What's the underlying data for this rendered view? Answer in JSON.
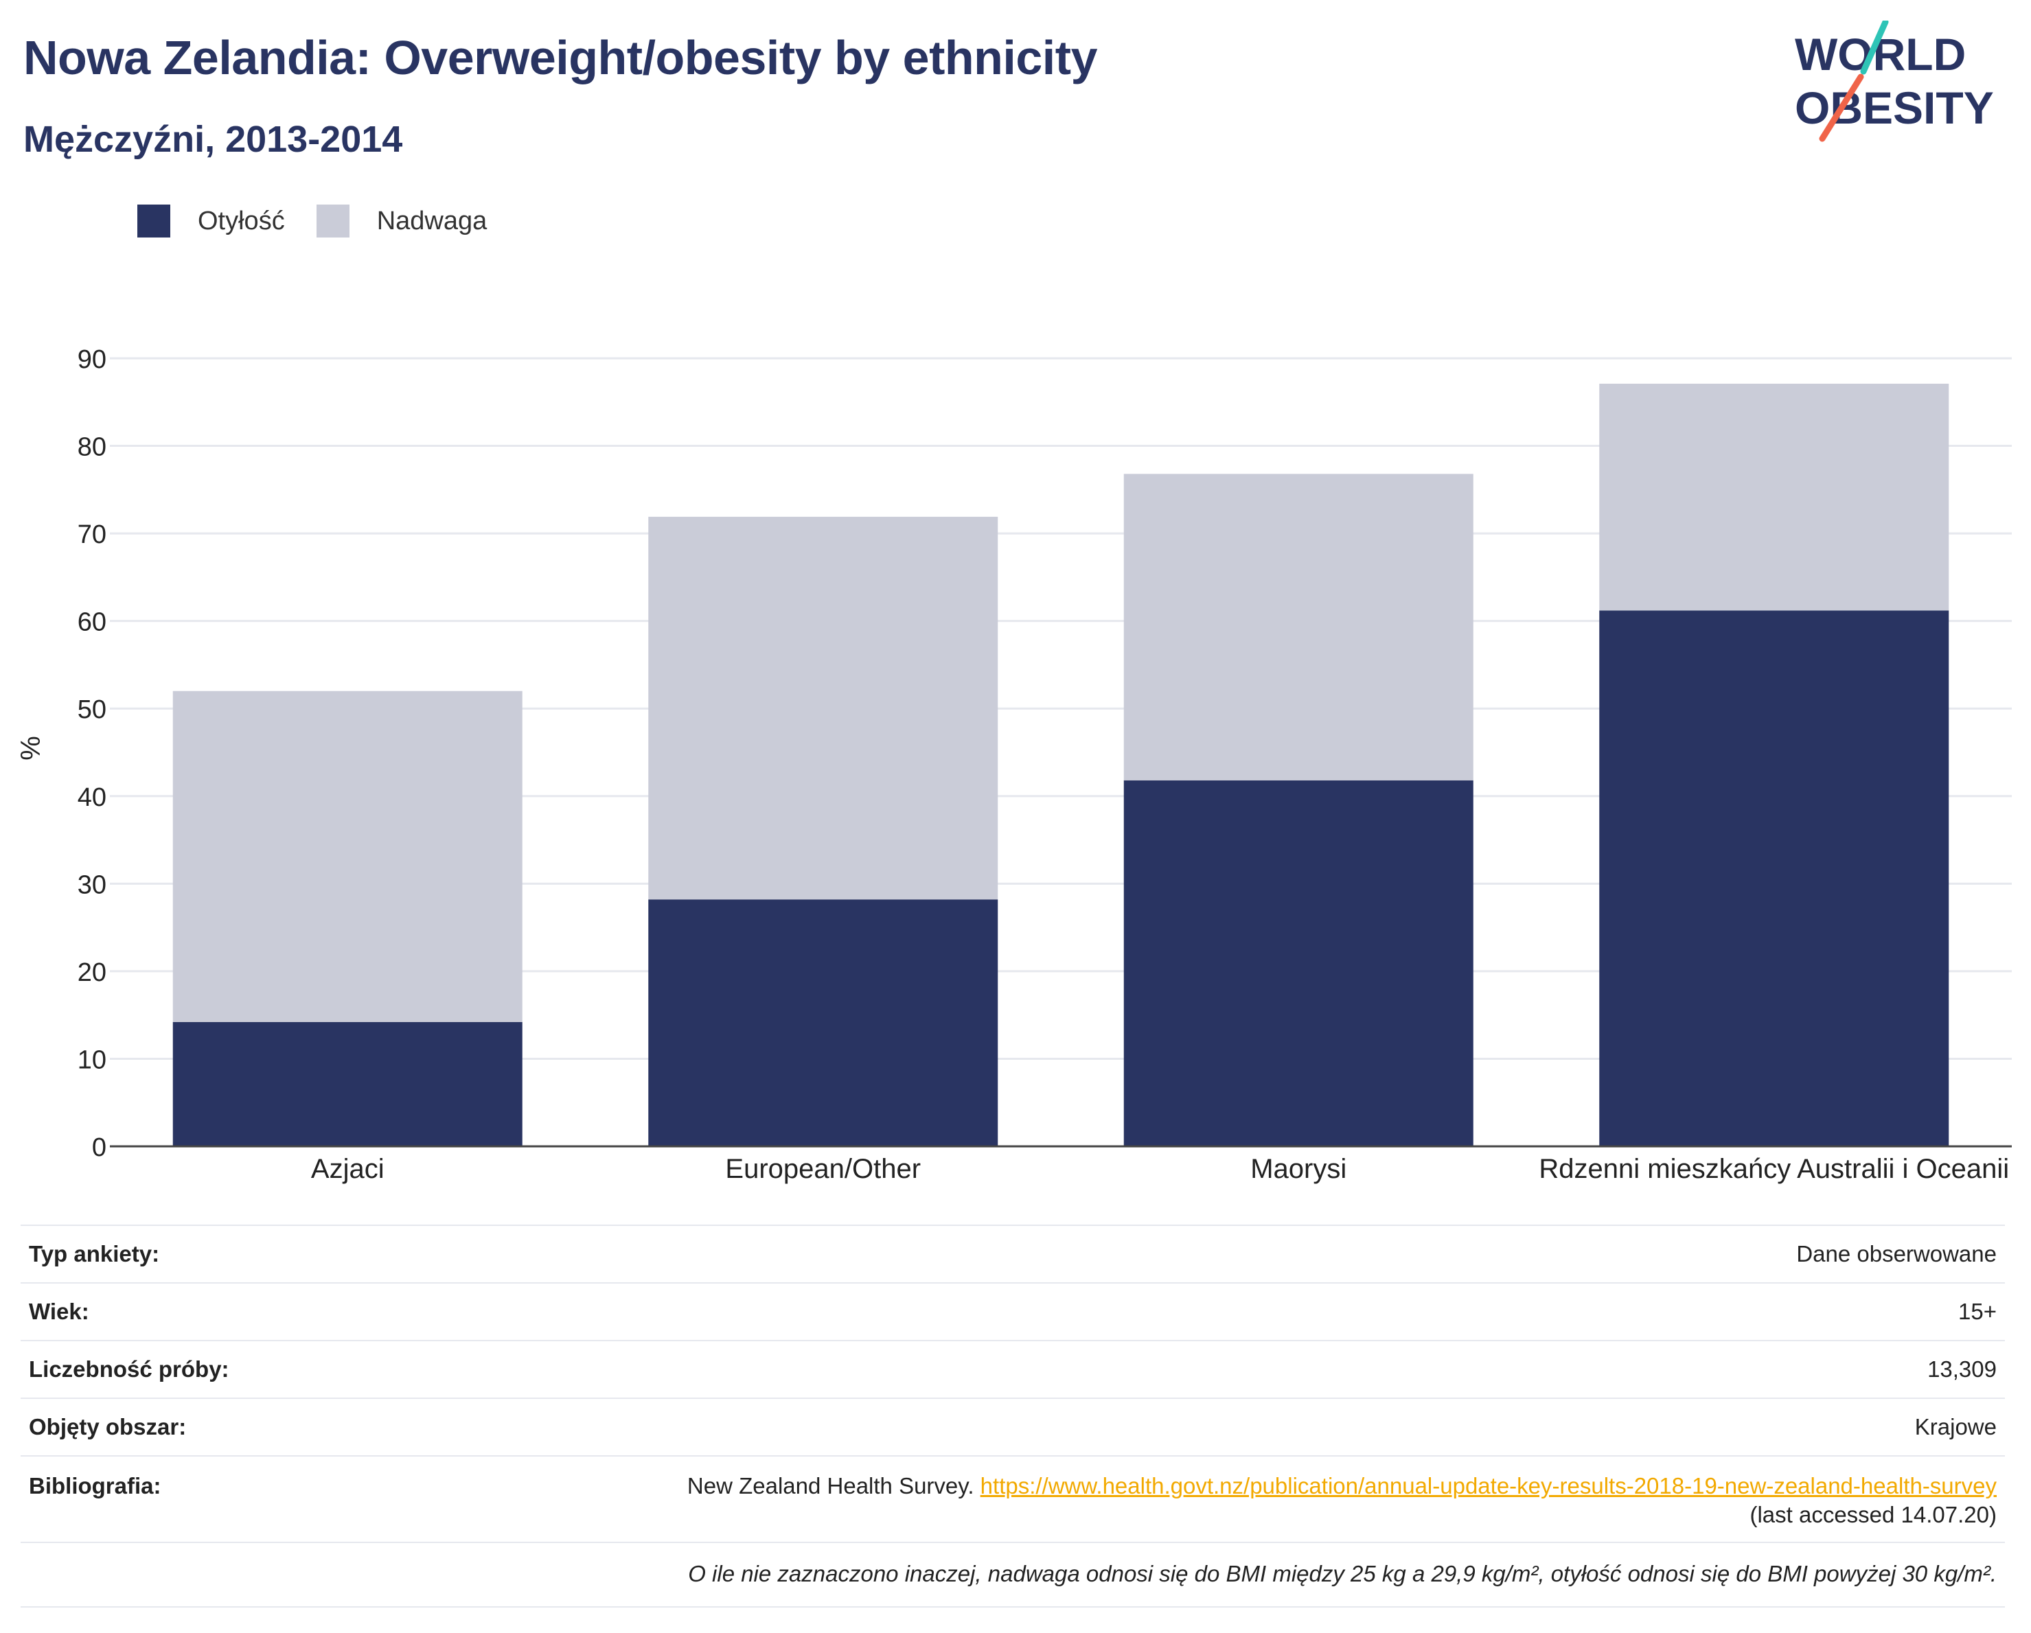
{
  "header": {
    "title": "Nowa Zelandia: Overweight/obesity by ethnicity",
    "subtitle": "Mężczyźni, 2013-2014"
  },
  "logo": {
    "line1": "WORLD",
    "line2": "OBESITY",
    "icon": "world-obesity-logo"
  },
  "colors": {
    "obesity": "#293462",
    "overweight": "#caccd8",
    "accent_link": "#f2a900",
    "logo_teal": "#2ec4b6",
    "logo_red": "#f06449"
  },
  "chart_data": {
    "type": "bar",
    "stacked": true,
    "categories": [
      "Azjaci",
      "European/Other",
      "Maorysi",
      "Rdzenni mieszkańcy Australii i Oceanii"
    ],
    "series": [
      {
        "name": "Otyłość",
        "values": [
          14.2,
          28.2,
          41.8,
          61.2
        ]
      },
      {
        "name": "Nadwaga",
        "values": [
          37.8,
          43.7,
          35.0,
          25.9
        ]
      }
    ],
    "ylabel": "%",
    "ylim": [
      0,
      90
    ],
    "yticks": [
      0,
      10,
      20,
      30,
      40,
      50,
      60,
      70,
      80,
      90
    ],
    "grid": true,
    "legend_position": "top-left"
  },
  "info": {
    "rows": [
      {
        "label": "Typ ankiety:",
        "value": "Dane obserwowane"
      },
      {
        "label": "Wiek:",
        "value": "15+"
      },
      {
        "label": "Liczebność próby:",
        "value": "13,309"
      },
      {
        "label": "Objęty obszar:",
        "value": "Krajowe"
      }
    ],
    "bibliography": {
      "label": "Bibliografia:",
      "text": "New Zealand Health Survey. ",
      "link": "https://www.health.govt.nz/publication/annual-update-key-results-2018-19-new-zealand-health-survey",
      "accessed": "(last accessed 14.07.20)"
    },
    "note": "O ile nie zaznaczono inaczej, nadwaga odnosi się do BMI między 25 kg a 29,9 kg/m², otyłość odnosi się do BMI powyżej 30 kg/m²."
  }
}
